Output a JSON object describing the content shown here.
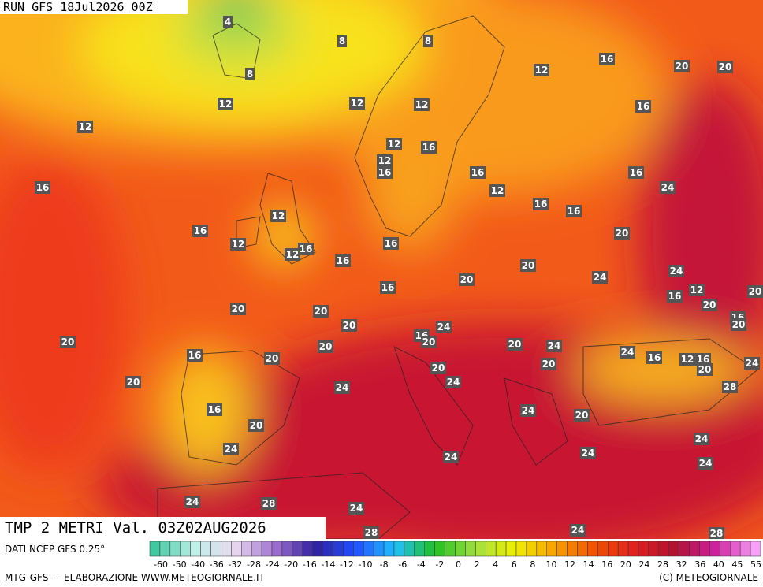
{
  "header": {
    "run": "RUN GFS 18Jul2026 00Z"
  },
  "map": {
    "labels": [
      4,
      8,
      8,
      8,
      16,
      20,
      20,
      12,
      12,
      12,
      12,
      16,
      12,
      12,
      16,
      12,
      16,
      16,
      16,
      12,
      16,
      24,
      16,
      16,
      12,
      16,
      12,
      16,
      20,
      12,
      16,
      16,
      20,
      24,
      16,
      20,
      24,
      12,
      16,
      20,
      20,
      20,
      20,
      20,
      24,
      16,
      20,
      20,
      16,
      20,
      20,
      20,
      24,
      24,
      16,
      20,
      16,
      12,
      16,
      20,
      24,
      20,
      20,
      20,
      24,
      24,
      28,
      16,
      24,
      20,
      20,
      24,
      24,
      24,
      24,
      24,
      24,
      28,
      24,
      24,
      28,
      28
    ]
  },
  "footer": {
    "field": "TMP 2 METRI Val. 03Z02AUG2026",
    "source": "DATI NCEP GFS 0.25°",
    "credit": "MTG-GFS — ELABORAZIONE WWW.METEOGIORNALE.IT",
    "copyright": "(C) METEOGIORNALE"
  },
  "scale": {
    "labels": [
      -60,
      -50,
      -40,
      -36,
      -32,
      -28,
      -24,
      -20,
      -16,
      -14,
      -12,
      -10,
      -8,
      -6,
      -4,
      -2,
      0,
      2,
      4,
      6,
      8,
      10,
      12,
      14,
      16,
      20,
      24,
      28,
      32,
      36,
      40,
      45,
      55
    ],
    "palette": [
      "#40c8a0",
      "#c0f0e8",
      "#e8d8f0",
      "#a070d0",
      "#3020a0",
      "#2050ff",
      "#20c0ff",
      "#20c020",
      "#a0e040",
      "#f0f000",
      "#f8a000",
      "#f05000",
      "#e02020",
      "#b01030",
      "#d020a0",
      "#f8a0f8"
    ]
  }
}
